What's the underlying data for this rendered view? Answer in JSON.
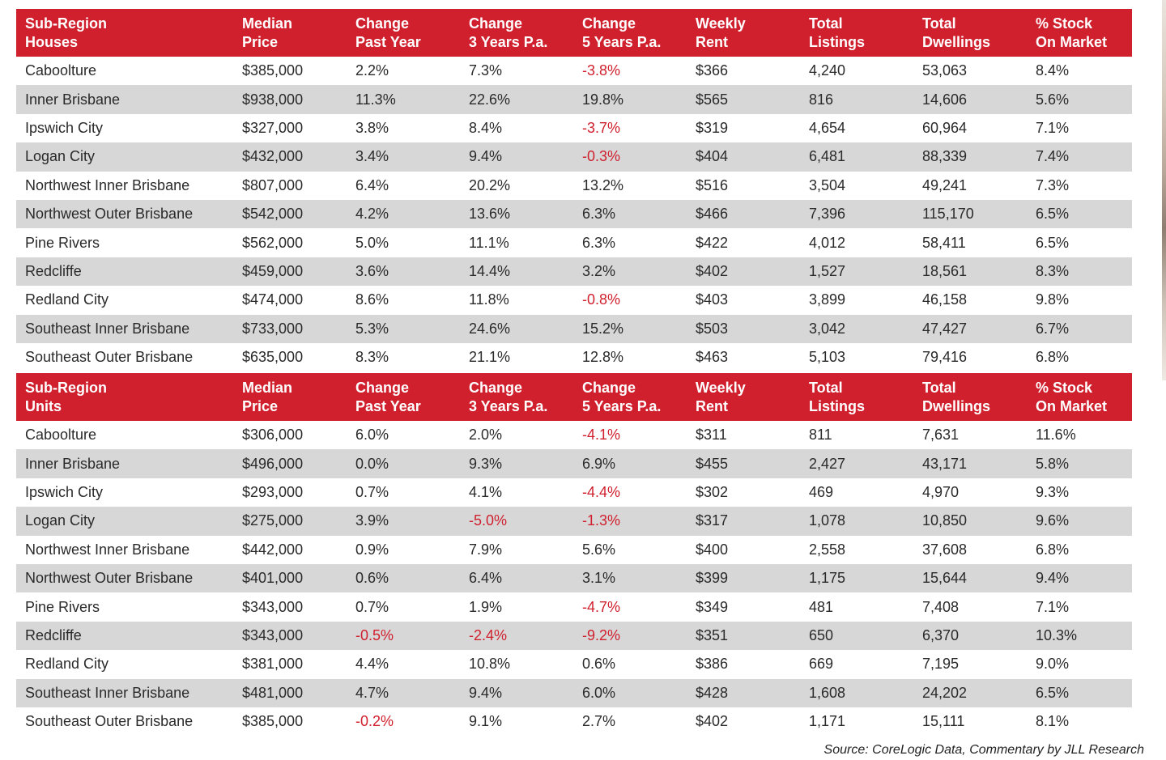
{
  "colors": {
    "header_bg": "#d0202e",
    "alt_row_bg": "#d7d7d7",
    "negative_text": "#d0202e"
  },
  "tables": [
    {
      "headers": [
        "Sub-Region\nHouses",
        "Median\nPrice",
        "Change\nPast Year",
        "Change\n3 Years P.a.",
        "Change\n5 Years P.a.",
        "Weekly\nRent",
        "Total\nListings",
        "Total\nDwellings",
        "% Stock\nOn Market"
      ],
      "rows": [
        [
          "Caboolture",
          "$385,000",
          "2.2%",
          "7.3%",
          "-3.8%",
          "$366",
          "4,240",
          "53,063",
          "8.4%"
        ],
        [
          "Inner Brisbane",
          "$938,000",
          "11.3%",
          "22.6%",
          "19.8%",
          "$565",
          "816",
          "14,606",
          "5.6%"
        ],
        [
          "Ipswich City",
          "$327,000",
          "3.8%",
          "8.4%",
          "-3.7%",
          "$319",
          "4,654",
          "60,964",
          "7.1%"
        ],
        [
          "Logan City",
          "$432,000",
          "3.4%",
          "9.4%",
          "-0.3%",
          "$404",
          "6,481",
          "88,339",
          "7.4%"
        ],
        [
          "Northwest Inner Brisbane",
          "$807,000",
          "6.4%",
          "20.2%",
          "13.2%",
          "$516",
          "3,504",
          "49,241",
          "7.3%"
        ],
        [
          "Northwest Outer Brisbane",
          "$542,000",
          "4.2%",
          "13.6%",
          "6.3%",
          "$466",
          "7,396",
          "115,170",
          "6.5%"
        ],
        [
          "Pine Rivers",
          "$562,000",
          "5.0%",
          "11.1%",
          "6.3%",
          "$422",
          "4,012",
          "58,411",
          "6.5%"
        ],
        [
          "Redcliffe",
          "$459,000",
          "3.6%",
          "14.4%",
          "3.2%",
          "$402",
          "1,527",
          "18,561",
          "8.3%"
        ],
        [
          "Redland City",
          "$474,000",
          "8.6%",
          "11.8%",
          "-0.8%",
          "$403",
          "3,899",
          "46,158",
          "9.8%"
        ],
        [
          "Southeast Inner Brisbane",
          "$733,000",
          "5.3%",
          "24.6%",
          "15.2%",
          "$503",
          "3,042",
          "47,427",
          "6.7%"
        ],
        [
          "Southeast Outer Brisbane",
          "$635,000",
          "8.3%",
          "21.1%",
          "12.8%",
          "$463",
          "5,103",
          "79,416",
          "6.8%"
        ]
      ]
    },
    {
      "headers": [
        "Sub-Region\nUnits",
        "Median\nPrice",
        "Change\nPast Year",
        "Change\n3 Years P.a.",
        "Change\n5 Years P.a.",
        "Weekly\nRent",
        "Total\nListings",
        "Total\nDwellings",
        "% Stock\nOn Market"
      ],
      "rows": [
        [
          "Caboolture",
          "$306,000",
          "6.0%",
          "2.0%",
          "-4.1%",
          "$311",
          "811",
          "7,631",
          "11.6%"
        ],
        [
          "Inner Brisbane",
          "$496,000",
          "0.0%",
          "9.3%",
          "6.9%",
          "$455",
          "2,427",
          "43,171",
          "5.8%"
        ],
        [
          "Ipswich City",
          "$293,000",
          "0.7%",
          "4.1%",
          "-4.4%",
          "$302",
          "469",
          "4,970",
          "9.3%"
        ],
        [
          "Logan City",
          "$275,000",
          "3.9%",
          "-5.0%",
          "-1.3%",
          "$317",
          "1,078",
          "10,850",
          "9.6%"
        ],
        [
          "Northwest Inner Brisbane",
          "$442,000",
          "0.9%",
          "7.9%",
          "5.6%",
          "$400",
          "2,558",
          "37,608",
          "6.8%"
        ],
        [
          "Northwest Outer Brisbane",
          "$401,000",
          "0.6%",
          "6.4%",
          "3.1%",
          "$399",
          "1,175",
          "15,644",
          "9.4%"
        ],
        [
          "Pine Rivers",
          "$343,000",
          "0.7%",
          "1.9%",
          "-4.7%",
          "$349",
          "481",
          "7,408",
          "7.1%"
        ],
        [
          "Redcliffe",
          "$343,000",
          "-0.5%",
          "-2.4%",
          "-9.2%",
          "$351",
          "650",
          "6,370",
          "10.3%"
        ],
        [
          "Redland City",
          "$381,000",
          "4.4%",
          "10.8%",
          "0.6%",
          "$386",
          "669",
          "7,195",
          "9.0%"
        ],
        [
          "Southeast Inner Brisbane",
          "$481,000",
          "4.7%",
          "9.4%",
          "6.0%",
          "$428",
          "1,608",
          "24,202",
          "6.5%"
        ],
        [
          "Southeast Outer Brisbane",
          "$385,000",
          "-0.2%",
          "9.1%",
          "2.7%",
          "$402",
          "1,171",
          "15,111",
          "8.1%"
        ]
      ]
    }
  ],
  "source": "Source: CoreLogic Data, Commentary by JLL Research"
}
